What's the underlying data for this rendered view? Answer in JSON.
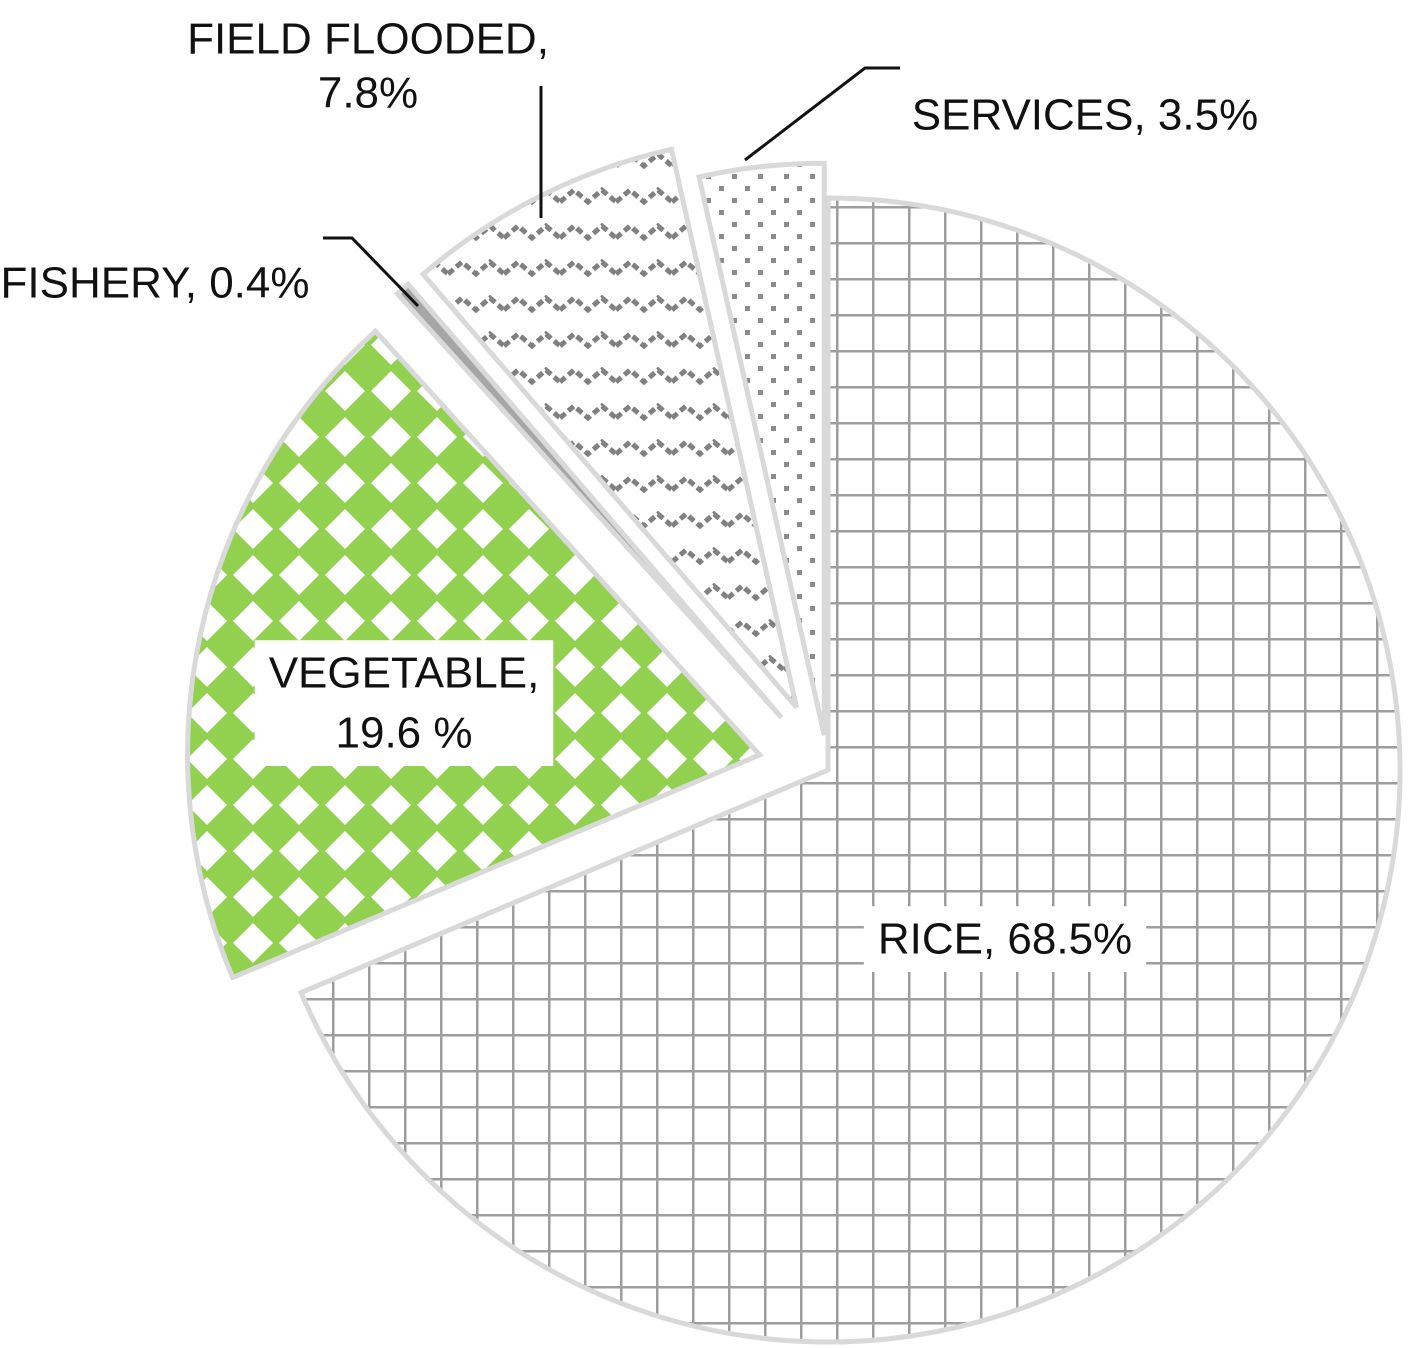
{
  "chart_data": {
    "type": "pie",
    "title": "",
    "legend": "none",
    "unit": "%",
    "slices": [
      {
        "name": "RICE",
        "value": 68.5,
        "label_lines": [
          "RICE, 68.5%"
        ],
        "pattern": "grid",
        "color": "#9e9e9e",
        "exploded": false
      },
      {
        "name": "VEGETABLE",
        "value": 19.6,
        "label_lines": [
          "VEGETABLE,",
          "19.6 %"
        ],
        "pattern": "green-diamonds",
        "color": "#92d050",
        "exploded": true
      },
      {
        "name": "FISHERY",
        "value": 0.4,
        "label_lines": [
          "FISHERY, 0.4%"
        ],
        "pattern": "solid",
        "color": "#a6a6a6",
        "exploded": true
      },
      {
        "name": "FIELD FLOODED",
        "value": 7.8,
        "label_lines": [
          "FIELD FLOODED,",
          "7.8%"
        ],
        "pattern": "zigzag",
        "color": "#7f7f7f",
        "exploded": true
      },
      {
        "name": "SERVICES",
        "value": 3.5,
        "label_lines": [
          "SERVICES, 3.5%"
        ],
        "pattern": "dots",
        "color": "#8c8c8c",
        "exploded": true
      }
    ],
    "border_color": "#d9d9d9"
  }
}
